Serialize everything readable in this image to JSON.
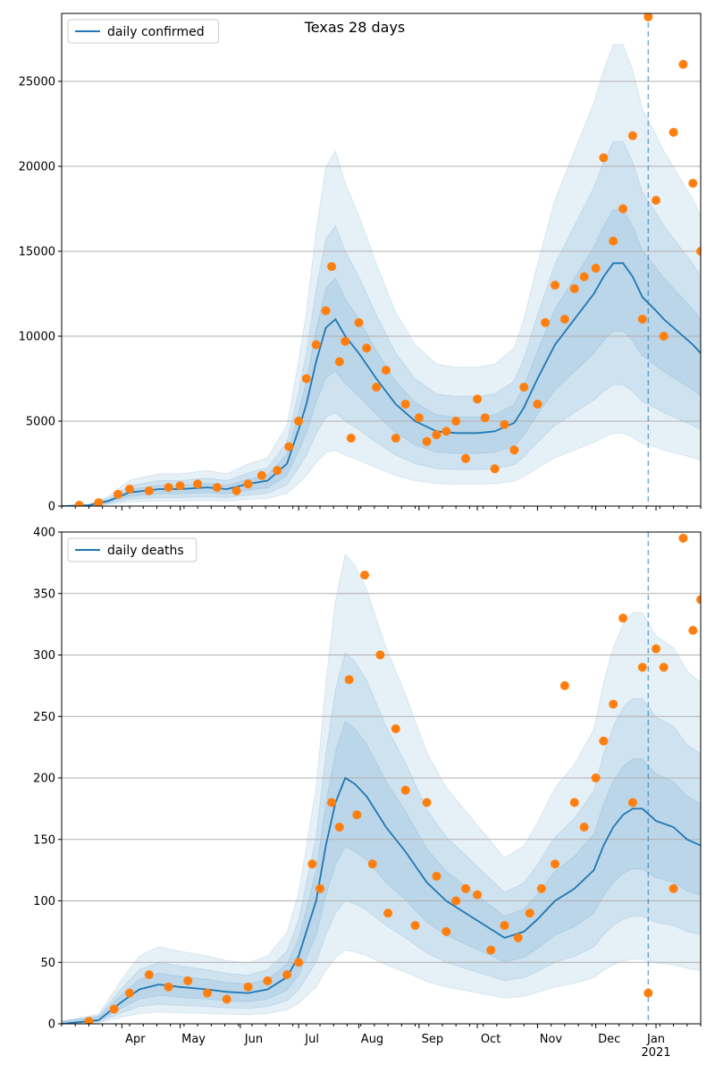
{
  "chart_data": [
    {
      "type": "line",
      "title": "Texas 28 days",
      "xlabel": "",
      "ylabel": "",
      "x_range": [
        "2020-03-01",
        "2021-01-24"
      ],
      "ylim": [
        0,
        29000
      ],
      "yticks": [
        0,
        5000,
        10000,
        15000,
        20000,
        25000
      ],
      "grid": "horizontal",
      "legend_position": "top-left",
      "vline_date": "2020-12-28",
      "colors": {
        "line": "#1f77b4",
        "points": "#ff7f0e",
        "band": "#1f77b4"
      },
      "series": [
        {
          "name": "daily confirmed",
          "kind": "line",
          "x": [
            "2020-03-01",
            "2020-03-15",
            "2020-03-25",
            "2020-04-05",
            "2020-04-20",
            "2020-05-01",
            "2020-05-15",
            "2020-05-25",
            "2020-06-05",
            "2020-06-15",
            "2020-06-25",
            "2020-07-01",
            "2020-07-05",
            "2020-07-10",
            "2020-07-15",
            "2020-07-20",
            "2020-07-25",
            "2020-08-01",
            "2020-08-10",
            "2020-08-20",
            "2020-08-30",
            "2020-09-10",
            "2020-09-20",
            "2020-10-01",
            "2020-10-10",
            "2020-10-20",
            "2020-10-25",
            "2020-11-01",
            "2020-11-10",
            "2020-11-20",
            "2020-11-30",
            "2020-12-05",
            "2020-12-10",
            "2020-12-15",
            "2020-12-20",
            "2020-12-25",
            "2021-01-01",
            "2021-01-05",
            "2021-01-10",
            "2021-01-15",
            "2021-01-20",
            "2021-01-24"
          ],
          "values": [
            0,
            50,
            300,
            800,
            1000,
            1000,
            1100,
            1000,
            1300,
            1500,
            2500,
            4500,
            6000,
            8500,
            10500,
            11000,
            10000,
            9000,
            7500,
            6000,
            5000,
            4400,
            4300,
            4300,
            4400,
            4900,
            5800,
            7500,
            9500,
            11000,
            12500,
            13500,
            14300,
            14300,
            13500,
            12300,
            11500,
            11000,
            10500,
            10000,
            9500,
            9000
          ]
        },
        {
          "name": "",
          "kind": "points",
          "x": [
            "2020-03-10",
            "2020-03-20",
            "2020-03-30",
            "2020-04-05",
            "2020-04-15",
            "2020-04-25",
            "2020-05-01",
            "2020-05-10",
            "2020-05-20",
            "2020-05-30",
            "2020-06-05",
            "2020-06-12",
            "2020-06-20",
            "2020-06-26",
            "2020-07-01",
            "2020-07-05",
            "2020-07-10",
            "2020-07-15",
            "2020-07-18",
            "2020-07-22",
            "2020-07-25",
            "2020-07-28",
            "2020-08-01",
            "2020-08-05",
            "2020-08-10",
            "2020-08-15",
            "2020-08-20",
            "2020-08-25",
            "2020-09-01",
            "2020-09-05",
            "2020-09-10",
            "2020-09-15",
            "2020-09-20",
            "2020-09-25",
            "2020-10-01",
            "2020-10-05",
            "2020-10-10",
            "2020-10-15",
            "2020-10-20",
            "2020-10-25",
            "2020-11-01",
            "2020-11-05",
            "2020-11-10",
            "2020-11-15",
            "2020-11-20",
            "2020-11-25",
            "2020-12-01",
            "2020-12-05",
            "2020-12-10",
            "2020-12-15",
            "2020-12-20",
            "2020-12-25",
            "2020-12-28",
            "2021-01-01",
            "2021-01-05",
            "2021-01-10",
            "2021-01-15",
            "2021-01-20",
            "2021-01-24"
          ],
          "values": [
            50,
            200,
            700,
            1000,
            900,
            1100,
            1200,
            1300,
            1100,
            900,
            1300,
            1800,
            2100,
            3500,
            5000,
            7500,
            9500,
            11500,
            14100,
            8500,
            9700,
            4000,
            10800,
            9300,
            7000,
            8000,
            4000,
            6000,
            5200,
            3800,
            4200,
            4400,
            5000,
            2800,
            6300,
            5200,
            2200,
            4800,
            3300,
            7000,
            6000,
            10800,
            13000,
            11000,
            12800,
            13500,
            14000,
            20500,
            15600,
            17500,
            21800,
            11000,
            28800,
            18000,
            10000,
            22000,
            26000,
            19000,
            15000
          ]
        }
      ]
    },
    {
      "type": "line",
      "title": "",
      "xlabel": "",
      "ylabel": "",
      "x_range": [
        "2020-03-01",
        "2021-01-24"
      ],
      "ylim": [
        0,
        400
      ],
      "yticks": [
        0,
        50,
        100,
        150,
        200,
        250,
        300,
        350,
        400
      ],
      "xticks": [
        "Apr",
        "May",
        "Jun",
        "Jul",
        "Aug",
        "Sep",
        "Oct",
        "Nov",
        "Dec",
        "Jan"
      ],
      "xtick_year": "2021",
      "grid": "horizontal",
      "legend_position": "top-left",
      "vline_date": "2020-12-28",
      "colors": {
        "line": "#1f77b4",
        "points": "#ff7f0e",
        "band": "#1f77b4"
      },
      "series": [
        {
          "name": "daily deaths",
          "kind": "line",
          "x": [
            "2020-03-01",
            "2020-03-20",
            "2020-04-01",
            "2020-04-10",
            "2020-04-20",
            "2020-05-01",
            "2020-05-15",
            "2020-05-25",
            "2020-06-05",
            "2020-06-15",
            "2020-06-25",
            "2020-07-01",
            "2020-07-10",
            "2020-07-15",
            "2020-07-20",
            "2020-07-25",
            "2020-07-30",
            "2020-08-05",
            "2020-08-15",
            "2020-08-25",
            "2020-09-05",
            "2020-09-15",
            "2020-09-25",
            "2020-10-05",
            "2020-10-15",
            "2020-10-25",
            "2020-11-01",
            "2020-11-10",
            "2020-11-20",
            "2020-11-30",
            "2020-12-05",
            "2020-12-10",
            "2020-12-15",
            "2020-12-20",
            "2020-12-25",
            "2021-01-01",
            "2021-01-10",
            "2021-01-17",
            "2021-01-24"
          ],
          "values": [
            0,
            3,
            18,
            28,
            32,
            30,
            28,
            26,
            25,
            28,
            38,
            55,
            100,
            145,
            180,
            200,
            195,
            185,
            160,
            140,
            115,
            100,
            90,
            80,
            70,
            75,
            85,
            100,
            110,
            125,
            145,
            160,
            170,
            175,
            175,
            165,
            160,
            150,
            145
          ]
        },
        {
          "name": "",
          "kind": "points",
          "x": [
            "2020-03-15",
            "2020-03-28",
            "2020-04-05",
            "2020-04-15",
            "2020-04-25",
            "2020-05-05",
            "2020-05-15",
            "2020-05-25",
            "2020-06-05",
            "2020-06-15",
            "2020-06-25",
            "2020-07-01",
            "2020-07-08",
            "2020-07-12",
            "2020-07-18",
            "2020-07-22",
            "2020-07-27",
            "2020-07-31",
            "2020-08-04",
            "2020-08-08",
            "2020-08-12",
            "2020-08-16",
            "2020-08-20",
            "2020-08-25",
            "2020-08-30",
            "2020-09-05",
            "2020-09-10",
            "2020-09-15",
            "2020-09-20",
            "2020-09-25",
            "2020-10-01",
            "2020-10-08",
            "2020-10-15",
            "2020-10-22",
            "2020-10-28",
            "2020-11-03",
            "2020-11-10",
            "2020-11-15",
            "2020-11-20",
            "2020-11-25",
            "2020-12-01",
            "2020-12-05",
            "2020-12-10",
            "2020-12-15",
            "2020-12-20",
            "2020-12-25",
            "2020-12-28",
            "2021-01-01",
            "2021-01-05",
            "2021-01-10",
            "2021-01-15",
            "2021-01-20",
            "2021-01-24"
          ],
          "values": [
            2,
            12,
            25,
            40,
            30,
            35,
            25,
            20,
            30,
            35,
            40,
            50,
            130,
            110,
            180,
            160,
            280,
            170,
            365,
            130,
            300,
            90,
            240,
            190,
            80,
            180,
            120,
            75,
            100,
            110,
            105,
            60,
            80,
            70,
            90,
            110,
            130,
            275,
            180,
            160,
            200,
            230,
            260,
            330,
            180,
            290,
            25,
            305,
            290,
            110,
            395,
            320,
            345
          ]
        }
      ]
    }
  ]
}
